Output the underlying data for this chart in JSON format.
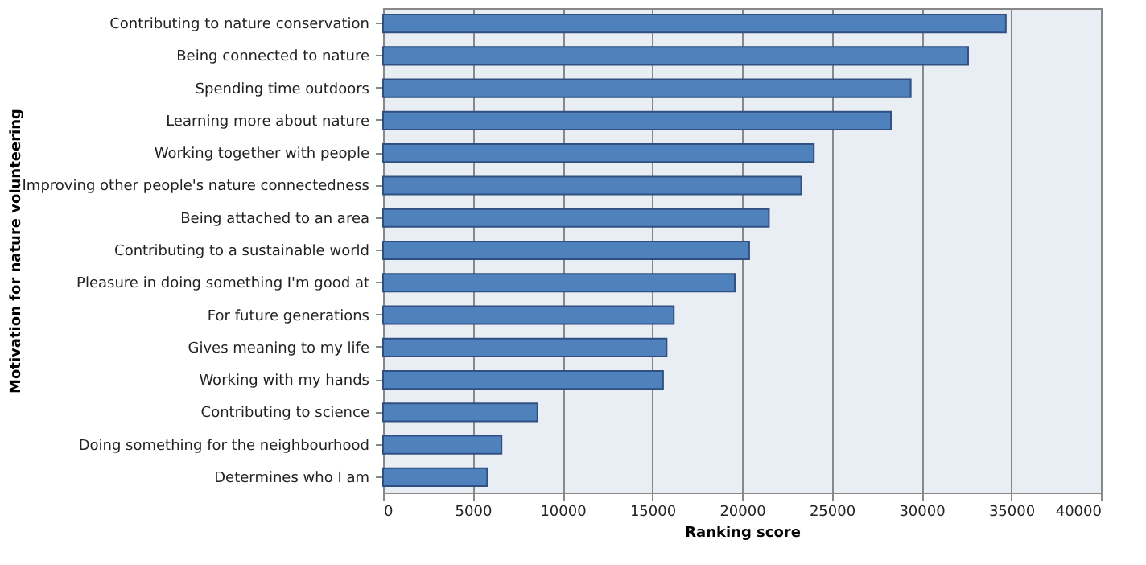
{
  "chart_data": {
    "type": "bar",
    "orientation": "horizontal",
    "xlabel": "Ranking score",
    "ylabel": "Motivation for nature volunteering",
    "categories": [
      "Contributing to nature conservation",
      "Being connected to nature",
      "Spending time outdoors",
      "Learning more about nature",
      "Working together with people",
      "Improving other people's nature connectedness",
      "Being attached to an area",
      "Contributing to a sustainable world",
      "Pleasure in doing something I'm good at",
      "For future generations",
      "Gives meaning to my life",
      "Working with my hands",
      "Contributing to science",
      "Doing something for the neighbourhood",
      "Determines who I am"
    ],
    "values": [
      34700,
      32600,
      29400,
      28300,
      24000,
      23300,
      21500,
      20400,
      19600,
      16200,
      15800,
      15600,
      8600,
      6600,
      5800
    ],
    "color": "#4f81bd",
    "xlim": [
      0,
      40000
    ],
    "xticks": [
      0,
      5000,
      10000,
      15000,
      20000,
      25000,
      30000,
      35000,
      40000
    ],
    "grid": "x"
  }
}
